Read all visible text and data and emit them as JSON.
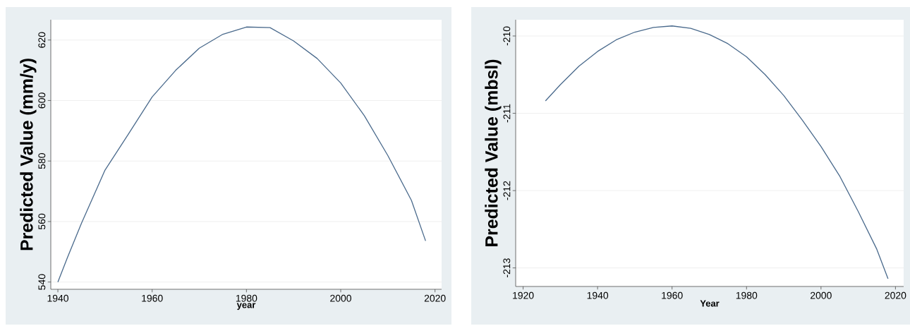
{
  "chart_data": [
    {
      "type": "line",
      "xlabel": "year",
      "ylabel": "Predicted Value (mm/y)",
      "xlim": [
        1938.5,
        2021.4
      ],
      "ylim": [
        537.6,
        626.7
      ],
      "xticks": [
        1940,
        1960,
        1980,
        2000,
        2020
      ],
      "yticks": [
        540,
        560,
        580,
        600,
        620
      ],
      "grid": "y",
      "tick_labels": [
        "x",
        "y"
      ],
      "series": [
        {
          "color": "#4a6a8c",
          "x": [
            1940,
            1942,
            1945,
            1950,
            1955,
            1960,
            1965,
            1970,
            1975,
            1980,
            1985,
            1990,
            1995,
            2000,
            2005,
            2010,
            2015,
            2018
          ],
          "values": [
            540,
            548,
            559.4,
            577,
            589,
            601.2,
            610,
            617.3,
            621.9,
            624.3,
            624.1,
            619.7,
            613.9,
            605.8,
            595,
            581.8,
            567,
            553.6
          ]
        }
      ]
    },
    {
      "type": "line",
      "xlabel": "Year",
      "ylabel": "Predicted Value (mbsl)",
      "xlim": [
        1918,
        2022.2
      ],
      "ylim": [
        -213.24,
        -209.79
      ],
      "xticks": [
        1920,
        1940,
        1960,
        1980,
        2000,
        2020
      ],
      "yticks": [
        -213,
        -212,
        -211,
        -210
      ],
      "grid": "y",
      "series": [
        {
          "color": "#4a6a8c",
          "x": [
            1926,
            1930,
            1935,
            1940,
            1945,
            1950,
            1955,
            1960,
            1965,
            1970,
            1975,
            1980,
            1985,
            1990,
            1995,
            2000,
            2005,
            2010,
            2015,
            2018
          ],
          "values": [
            -210.84,
            -210.63,
            -210.39,
            -210.2,
            -210.05,
            -209.95,
            -209.89,
            -209.87,
            -209.9,
            -209.98,
            -210.1,
            -210.27,
            -210.5,
            -210.77,
            -211.09,
            -211.43,
            -211.81,
            -212.27,
            -212.76,
            -213.14
          ]
        }
      ]
    }
  ]
}
